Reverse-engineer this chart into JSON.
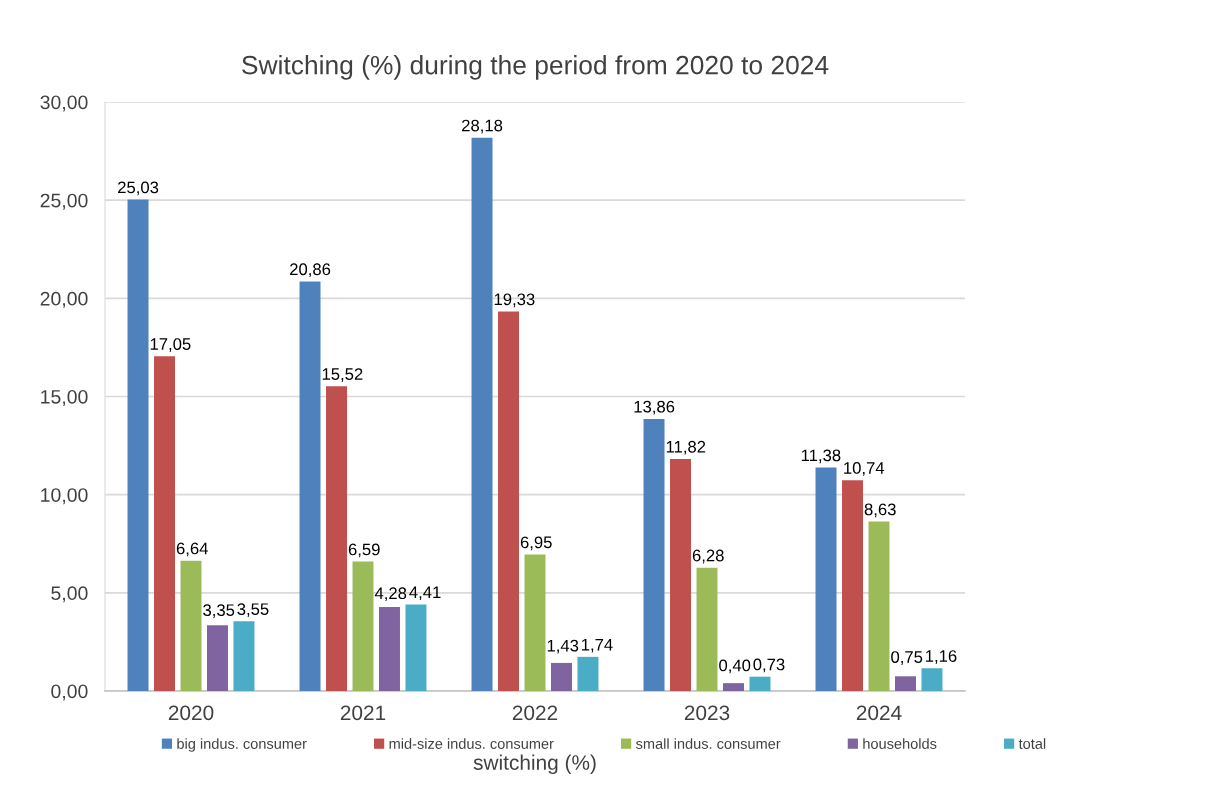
{
  "chart_data": {
    "type": "bar",
    "title": "Switching (%) during the period from 2020 to 2024",
    "xlabel": "switching (%)",
    "categories": [
      "2020",
      "2021",
      "2022",
      "2023",
      "2024"
    ],
    "series": [
      {
        "name": "big indus. consumer",
        "color": "#4f81bd",
        "values": [
          25.03,
          20.86,
          28.18,
          13.86,
          11.38
        ],
        "value_labels": [
          "25,03",
          "20,86",
          "28,18",
          "13,86",
          "11,38"
        ]
      },
      {
        "name": "mid-size indus. consumer",
        "color": "#c0504d",
        "values": [
          17.05,
          15.52,
          19.33,
          11.82,
          10.74
        ],
        "value_labels": [
          "17,05",
          "15,52",
          "19,33",
          "11,82",
          "10,74"
        ]
      },
      {
        "name": "small indus. consumer",
        "color": "#9bbb59",
        "values": [
          6.64,
          6.59,
          6.95,
          6.28,
          8.63
        ],
        "value_labels": [
          "6,64",
          "6,59",
          "6,95",
          "6,28",
          "8,63"
        ]
      },
      {
        "name": "households",
        "color": "#8064a2",
        "values": [
          3.35,
          4.28,
          1.43,
          0.4,
          0.75
        ],
        "value_labels": [
          "3,35",
          "4,28",
          "1,43",
          "0,40",
          "0,75"
        ]
      },
      {
        "name": "total",
        "color": "#4bacc6",
        "values": [
          3.55,
          4.41,
          1.74,
          0.73,
          1.16
        ],
        "value_labels": [
          "3,55",
          "4,41",
          "1,74",
          "0,73",
          "1,16"
        ]
      }
    ],
    "ylim": [
      0,
      30
    ],
    "yticks": [
      {
        "value": 0,
        "label": "0,00"
      },
      {
        "value": 5,
        "label": "5,00"
      },
      {
        "value": 10,
        "label": "10,00"
      },
      {
        "value": 15,
        "label": "15,00"
      },
      {
        "value": 20,
        "label": "20,00"
      },
      {
        "value": 25,
        "label": "25,00"
      },
      {
        "value": 30,
        "label": "30,00"
      }
    ],
    "grid": "y",
    "legend": "bottom"
  }
}
